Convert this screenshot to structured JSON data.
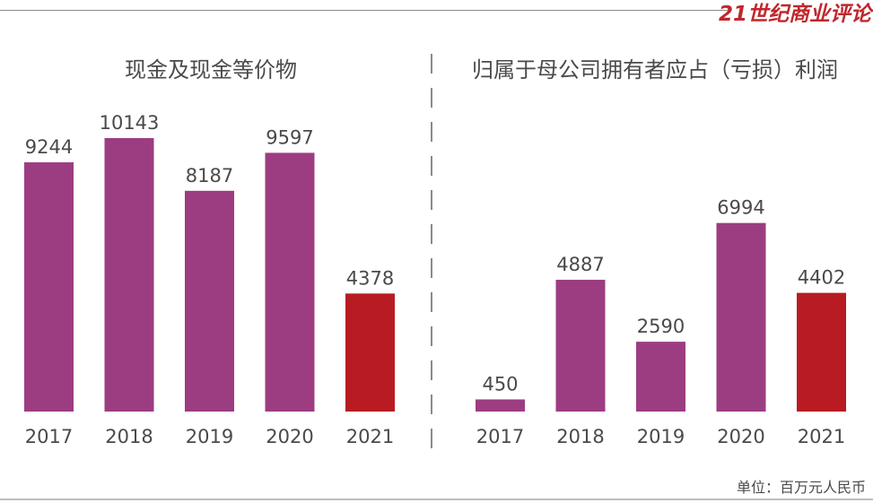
{
  "brand": "21世纪商业评论",
  "unit_label": "单位：百万元人民币",
  "colors": {
    "purple": "#9c3d82",
    "red": "#b81c22",
    "text": "#4a4a4a"
  },
  "chart_data": [
    {
      "type": "bar",
      "title": "现金及现金等价物",
      "categories": [
        "2017",
        "2018",
        "2019",
        "2020",
        "2021"
      ],
      "values": [
        9244,
        10143,
        8187,
        9597,
        4378
      ],
      "ylim": [
        0,
        10143
      ],
      "highlight_index": 4
    },
    {
      "type": "bar",
      "title": "归属于母公司拥有者应占（亏损）利润",
      "categories": [
        "2017",
        "2018",
        "2019",
        "2020",
        "2021"
      ],
      "values": [
        450,
        4887,
        2590,
        6994,
        4402
      ],
      "ylim": [
        0,
        10143
      ],
      "highlight_index": 4
    }
  ]
}
